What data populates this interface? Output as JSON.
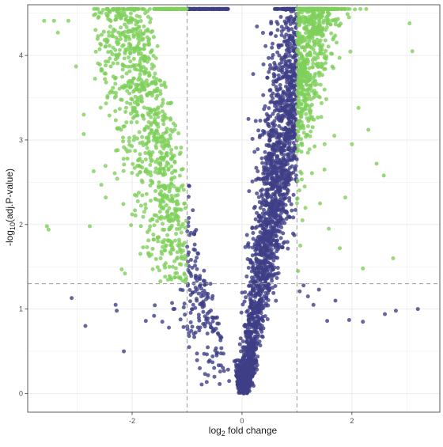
{
  "chart_data": {
    "type": "scatter",
    "title": "",
    "xlabel": {
      "prefix": "log",
      "sub": "2",
      "suffix": " fold change"
    },
    "ylabel": {
      "prefix": "-log",
      "sub": "10",
      "suffix": "(adj.P-value)"
    },
    "xlim": [
      -3.9,
      3.6
    ],
    "ylim": [
      -0.22,
      4.6
    ],
    "grid": true,
    "legend": "none",
    "x_ticks": [
      {
        "value": -2,
        "label": "-2"
      },
      {
        "value": 0,
        "label": "0"
      },
      {
        "value": 2,
        "label": "2"
      }
    ],
    "y_ticks": [
      {
        "value": 0,
        "label": "0"
      },
      {
        "value": 1,
        "label": "1"
      },
      {
        "value": 2,
        "label": "2"
      },
      {
        "value": 3,
        "label": "3"
      },
      {
        "value": 4,
        "label": "4"
      }
    ],
    "thresholds": {
      "x": [
        -1,
        1
      ],
      "y": 1.3
    },
    "colors": {
      "significant": "#7ED05A",
      "not_significant": "#3F3F87",
      "threshold_line": "#999999",
      "grid": "#EBEBEB",
      "panel_border": "#333333"
    },
    "cap": 4.55,
    "series": [
      {
        "key": "significant",
        "points": [
          [
            -3.6,
            4.41
          ],
          [
            -3.42,
            4.41
          ],
          [
            -3.35,
            4.27
          ],
          [
            -3.16,
            4.41
          ],
          [
            -3.02,
            3.87
          ],
          [
            -2.88,
            3.3
          ],
          [
            -2.88,
            3.07
          ],
          [
            -2.56,
            3.84
          ],
          [
            -2.56,
            3.82
          ],
          [
            -2.7,
            2.63
          ],
          [
            -2.56,
            2.47
          ],
          [
            -2.48,
            2.32
          ],
          [
            -2.77,
            1.98
          ],
          [
            -3.55,
            1.98
          ],
          [
            -3.52,
            1.94
          ],
          [
            -2.19,
            1.47
          ],
          [
            -2.13,
            1.42
          ],
          [
            -2.0,
            2.12
          ],
          [
            -1.95,
            2.35
          ],
          [
            -1.86,
            2.78
          ],
          [
            -1.8,
            1.73
          ],
          [
            -1.72,
            1.91
          ],
          [
            -1.66,
            2.52
          ],
          [
            -1.6,
            3.21
          ],
          [
            -1.55,
            3.72
          ],
          [
            -1.48,
            1.6
          ],
          [
            -1.42,
            2.66
          ],
          [
            -1.36,
            2.1
          ],
          [
            -1.3,
            3.02
          ],
          [
            -1.26,
            1.5
          ],
          [
            -1.2,
            1.89
          ],
          [
            -1.15,
            2.4
          ],
          [
            -1.1,
            1.62
          ],
          [
            -1.05,
            1.42
          ],
          [
            -1.3,
            4.55
          ],
          [
            -1.2,
            4.55
          ],
          [
            -1.1,
            4.55
          ],
          [
            -1.6,
            4.55
          ],
          [
            -1.5,
            4.55
          ],
          [
            -1.4,
            4.55
          ],
          [
            1.02,
            1.45
          ],
          [
            1.06,
            1.75
          ],
          [
            1.1,
            2.05
          ],
          [
            1.14,
            2.45
          ],
          [
            1.2,
            2.85
          ],
          [
            1.25,
            3.1
          ],
          [
            1.3,
            3.5
          ],
          [
            1.36,
            3.9
          ],
          [
            1.42,
            2.25
          ],
          [
            1.5,
            2.65
          ],
          [
            1.58,
            1.95
          ],
          [
            1.68,
            3.05
          ],
          [
            1.78,
            1.72
          ],
          [
            1.88,
            2.32
          ],
          [
            2.0,
            2.95
          ],
          [
            2.12,
            3.38
          ],
          [
            2.2,
            1.48
          ],
          [
            2.3,
            3.12
          ],
          [
            2.45,
            2.72
          ],
          [
            2.58,
            2.58
          ],
          [
            2.75,
            1.6
          ],
          [
            3.05,
            4.38
          ],
          [
            3.1,
            4.05
          ],
          [
            1.15,
            4.55
          ],
          [
            1.25,
            4.55
          ],
          [
            1.35,
            4.55
          ],
          [
            1.5,
            4.55
          ],
          [
            1.65,
            4.55
          ]
        ]
      },
      {
        "key": "not_significant",
        "points": [
          [
            -3.1,
            1.13
          ],
          [
            -2.85,
            0.8
          ],
          [
            -2.3,
            1.05
          ],
          [
            -2.28,
            0.98
          ],
          [
            -2.15,
            0.5
          ],
          [
            -1.75,
            0.86
          ],
          [
            -1.6,
            0.92
          ],
          [
            -1.45,
            0.85
          ],
          [
            -1.33,
            0.78
          ],
          [
            -1.25,
            1.0
          ],
          [
            -1.12,
            1.23
          ],
          [
            -1.06,
            1.02
          ],
          [
            3.2,
            1.0
          ],
          [
            2.8,
            0.98
          ],
          [
            2.6,
            0.94
          ],
          [
            2.2,
            0.85
          ],
          [
            1.95,
            0.87
          ],
          [
            1.7,
            1.1
          ],
          [
            1.55,
            0.86
          ],
          [
            1.4,
            1.23
          ],
          [
            1.3,
            1.05
          ],
          [
            1.2,
            1.15
          ],
          [
            1.12,
            1.28
          ],
          [
            1.05,
            1.21
          ]
        ]
      }
    ]
  }
}
